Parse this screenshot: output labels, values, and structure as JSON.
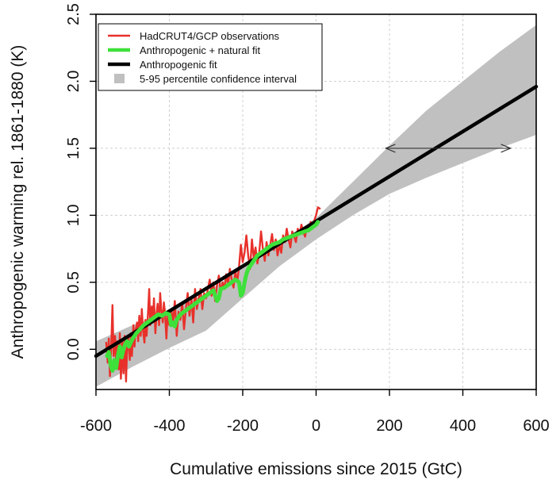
{
  "chart_data": {
    "type": "line",
    "title": "",
    "xlabel": "Cumulative emissions since 2015 (GtC)",
    "ylabel": "Anthropogenic warming rel. 1861-1880 (K)",
    "xlim": [
      -600,
      600
    ],
    "ylim": [
      -0.3,
      2.5
    ],
    "xticks": [
      -600,
      -400,
      -200,
      0,
      200,
      400,
      600
    ],
    "xtick_labels": [
      "-600",
      "-400",
      "-200",
      "0",
      "200",
      "400",
      "600"
    ],
    "yticks": [
      0.0,
      0.5,
      1.0,
      1.5,
      2.0,
      2.5
    ],
    "ytick_labels": [
      "0.0",
      "0.5",
      "1.0",
      "1.5",
      "2.0",
      "2.5"
    ],
    "grid": true,
    "legend_position": "top-left",
    "legend": [
      {
        "label": "HadCRUT4/GCP observations",
        "color": "#e8302a",
        "kind": "line"
      },
      {
        "label": "Anthropogenic + natural fit",
        "color": "#3ee03a",
        "kind": "line"
      },
      {
        "label": "Anthropogenic fit",
        "color": "#000000",
        "kind": "line"
      },
      {
        "label": "5-95 percentile confidence interval",
        "color": "#c0c0c0",
        "kind": "box"
      }
    ],
    "confidence_band": {
      "x": [
        -600,
        -500,
        -400,
        -300,
        -200,
        -100,
        0,
        100,
        200,
        300,
        400,
        500,
        600
      ],
      "lower": [
        -0.28,
        -0.13,
        0.01,
        0.14,
        0.38,
        0.62,
        0.82,
        1.0,
        1.16,
        1.28,
        1.39,
        1.5,
        1.6
      ],
      "upper": [
        0.06,
        0.18,
        0.28,
        0.42,
        0.61,
        0.79,
        0.98,
        1.25,
        1.52,
        1.78,
        2.0,
        2.22,
        2.42
      ],
      "color": "#c0c0c0"
    },
    "series": [
      {
        "name": "Anthropogenic fit",
        "color": "#000000",
        "x": [
          -600,
          600
        ],
        "y": [
          -0.05,
          1.96
        ]
      },
      {
        "name": "HadCRUT4/GCP observations",
        "color": "#e8302a",
        "x": [
          -572,
          -568,
          -565,
          -562,
          -558,
          -555,
          -552,
          -548,
          -545,
          -542,
          -538,
          -535,
          -532,
          -528,
          -525,
          -522,
          -518,
          -515,
          -512,
          -508,
          -505,
          -502,
          -498,
          -495,
          -492,
          -488,
          -485,
          -482,
          -478,
          -475,
          -472,
          -468,
          -465,
          -462,
          -458,
          -455,
          -452,
          -448,
          -445,
          -442,
          -438,
          -435,
          -432,
          -428,
          -425,
          -422,
          -418,
          -415,
          -412,
          -408,
          -405,
          -400,
          -395,
          -390,
          -385,
          -380,
          -375,
          -370,
          -365,
          -360,
          -355,
          -350,
          -345,
          -340,
          -335,
          -330,
          -325,
          -320,
          -315,
          -310,
          -305,
          -300,
          -295,
          -290,
          -285,
          -280,
          -275,
          -270,
          -265,
          -260,
          -255,
          -250,
          -245,
          -240,
          -235,
          -230,
          -225,
          -220,
          -215,
          -210,
          -205,
          -200,
          -195,
          -190,
          -185,
          -180,
          -175,
          -170,
          -165,
          -160,
          -155,
          -150,
          -145,
          -140,
          -135,
          -130,
          -125,
          -120,
          -115,
          -110,
          -105,
          -100,
          -95,
          -90,
          -85,
          -80,
          -75,
          -70,
          -65,
          -60,
          -55,
          -50,
          -45,
          -40,
          -35,
          -30,
          -25,
          -20,
          -15,
          -10,
          -5,
          0,
          5,
          10
        ],
        "y": [
          0.05,
          -0.1,
          0.08,
          -0.2,
          0.05,
          0.33,
          -0.05,
          0.1,
          -0.12,
          0.06,
          -0.15,
          0.12,
          -0.22,
          0.05,
          -0.18,
          0.1,
          -0.24,
          0.02,
          0.08,
          -0.08,
          0.12,
          -0.05,
          0.18,
          0.02,
          0.14,
          0.2,
          0.06,
          0.25,
          0.1,
          0.3,
          0.15,
          0.05,
          0.22,
          0.1,
          0.28,
          0.45,
          0.18,
          0.32,
          0.2,
          0.38,
          0.12,
          0.26,
          0.34,
          0.18,
          0.42,
          0.3,
          0.2,
          0.35,
          0.28,
          0.08,
          0.25,
          0.18,
          0.3,
          0.2,
          0.36,
          0.1,
          0.28,
          0.22,
          0.35,
          0.15,
          0.3,
          0.42,
          0.25,
          0.38,
          0.2,
          0.45,
          0.3,
          0.38,
          0.45,
          0.3,
          0.42,
          0.38,
          0.45,
          0.52,
          0.4,
          0.5,
          0.36,
          0.48,
          0.55,
          0.42,
          0.5,
          0.45,
          0.56,
          0.48,
          0.6,
          0.52,
          0.46,
          0.58,
          0.5,
          0.62,
          0.78,
          0.65,
          0.72,
          0.85,
          0.7,
          0.6,
          0.82,
          0.68,
          0.76,
          0.64,
          0.72,
          0.88,
          0.75,
          0.66,
          0.8,
          0.7,
          0.78,
          0.86,
          0.74,
          0.82,
          0.7,
          0.78,
          0.72,
          0.85,
          0.8,
          0.9,
          0.82,
          0.76,
          0.88,
          0.84,
          0.8,
          0.9,
          0.86,
          0.93,
          0.88,
          0.84,
          0.92,
          0.88,
          0.95,
          0.9,
          0.96,
          1.0,
          1.06,
          1.05
        ],
        "stroke_width": 2.4
      },
      {
        "name": "Anthropogenic + natural fit",
        "color": "#3ee03a",
        "x": [
          -570,
          -565,
          -560,
          -555,
          -550,
          -545,
          -540,
          -535,
          -530,
          -525,
          -520,
          -515,
          -510,
          -505,
          -500,
          -490,
          -480,
          -470,
          -460,
          -450,
          -440,
          -430,
          -420,
          -410,
          -400,
          -395,
          -390,
          -385,
          -380,
          -370,
          -360,
          -350,
          -340,
          -330,
          -320,
          -310,
          -300,
          -290,
          -280,
          -275,
          -270,
          -265,
          -260,
          -250,
          -240,
          -230,
          -220,
          -210,
          -205,
          -200,
          -195,
          -190,
          -185,
          -180,
          -170,
          -160,
          -150,
          -140,
          -130,
          -120,
          -110,
          -100,
          -90,
          -80,
          -70,
          -60,
          -50,
          -40,
          -30,
          -20,
          -10,
          0,
          5
        ],
        "y": [
          -0.05,
          -0.02,
          -0.12,
          -0.16,
          -0.08,
          -0.14,
          -0.04,
          0.02,
          -0.06,
          0.0,
          0.04,
          0.06,
          0.02,
          0.05,
          0.08,
          0.12,
          0.15,
          0.18,
          0.2,
          0.22,
          0.24,
          0.26,
          0.25,
          0.27,
          0.26,
          0.18,
          0.2,
          0.17,
          0.22,
          0.26,
          0.28,
          0.3,
          0.32,
          0.34,
          0.36,
          0.38,
          0.4,
          0.42,
          0.44,
          0.4,
          0.36,
          0.38,
          0.45,
          0.46,
          0.48,
          0.5,
          0.52,
          0.5,
          0.4,
          0.42,
          0.5,
          0.56,
          0.6,
          0.62,
          0.66,
          0.7,
          0.72,
          0.74,
          0.76,
          0.78,
          0.79,
          0.8,
          0.82,
          0.83,
          0.84,
          0.85,
          0.86,
          0.87,
          0.88,
          0.89,
          0.91,
          0.93,
          0.95
        ],
        "stroke_width": 5
      }
    ],
    "annotation_arrow": {
      "y": 1.5,
      "x_start": 190,
      "x_end": 530,
      "style": "double-headed"
    }
  }
}
